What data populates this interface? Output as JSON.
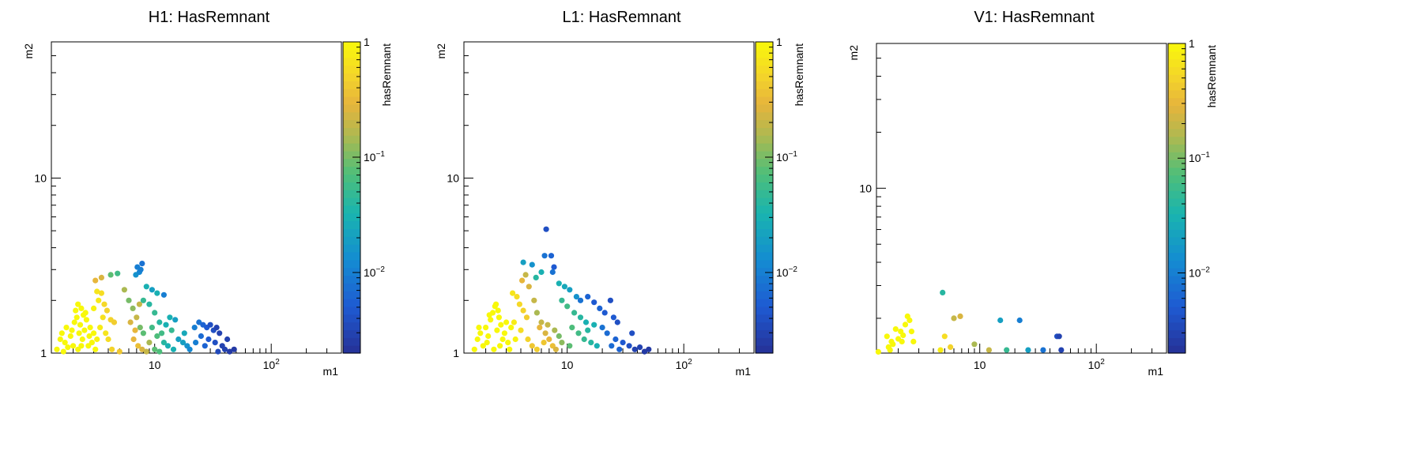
{
  "chart_data": [
    {
      "type": "scatter",
      "title": "H1: HasRemnant",
      "xlabel": "m1",
      "ylabel": "m2",
      "colorbar_label": "hasRemnant",
      "xscale": "log",
      "yscale": "log",
      "zscale": "log",
      "xlim": [
        1.3,
        400
      ],
      "ylim": [
        1,
        60
      ],
      "zlim": [
        0.002,
        1
      ],
      "xticks": [
        {
          "v": 10,
          "label": "10"
        },
        {
          "v": 100,
          "label": "10^2"
        }
      ],
      "yticks": [
        {
          "v": 1,
          "label": "1"
        },
        {
          "v": 10,
          "label": "10"
        }
      ],
      "cticks": [
        {
          "v": 1,
          "label": "1"
        },
        {
          "v": 0.1,
          "label": "10^-1"
        },
        {
          "v": 0.01,
          "label": "10^-2"
        }
      ],
      "grid": false,
      "points": [
        [
          1.45,
          1.05,
          1
        ],
        [
          1.55,
          1.2,
          1
        ],
        [
          1.6,
          1.3,
          1
        ],
        [
          1.7,
          1.15,
          1
        ],
        [
          1.75,
          1.4,
          1
        ],
        [
          1.8,
          1.08,
          1
        ],
        [
          1.9,
          1.25,
          1
        ],
        [
          1.95,
          1.35,
          1
        ],
        [
          2.0,
          1.1,
          1
        ],
        [
          2.05,
          1.5,
          1
        ],
        [
          2.1,
          1.75,
          1
        ],
        [
          2.15,
          1.6,
          1
        ],
        [
          2.2,
          1.9,
          1
        ],
        [
          2.25,
          1.3,
          1
        ],
        [
          2.3,
          1.45,
          1
        ],
        [
          2.35,
          1.8,
          1
        ],
        [
          2.4,
          1.2,
          1
        ],
        [
          2.45,
          1.65,
          1
        ],
        [
          2.5,
          1.35,
          1
        ],
        [
          2.6,
          1.55,
          1
        ],
        [
          2.7,
          1.1,
          1
        ],
        [
          2.75,
          1.25,
          1
        ],
        [
          2.8,
          1.4,
          1
        ],
        [
          2.9,
          1.15,
          1
        ],
        [
          3.0,
          1.3,
          1
        ],
        [
          3.1,
          1.05,
          1
        ],
        [
          2.2,
          1.05,
          1
        ],
        [
          1.65,
          1.02,
          1
        ],
        [
          2.55,
          1.7,
          1
        ],
        [
          2.35,
          1.1,
          1
        ],
        [
          3.2,
          2.25,
          0.7
        ],
        [
          3.5,
          2.2,
          0.6
        ],
        [
          3.3,
          2.0,
          0.75
        ],
        [
          3.7,
          1.9,
          0.55
        ],
        [
          3.9,
          1.75,
          0.5
        ],
        [
          3.6,
          1.6,
          0.65
        ],
        [
          4.2,
          1.55,
          0.5
        ],
        [
          4.5,
          1.5,
          0.45
        ],
        [
          3.4,
          1.4,
          0.8
        ],
        [
          3.8,
          1.3,
          0.7
        ],
        [
          4.0,
          1.2,
          0.6
        ],
        [
          4.3,
          1.05,
          0.5
        ],
        [
          5.0,
          1.02,
          0.4
        ],
        [
          3.1,
          2.6,
          0.3
        ],
        [
          3.5,
          2.7,
          0.25
        ],
        [
          3.2,
          1.2,
          0.9
        ],
        [
          3.0,
          1.8,
          0.9
        ],
        [
          4.2,
          2.8,
          0.08
        ],
        [
          4.8,
          2.85,
          0.06
        ],
        [
          5.5,
          2.3,
          0.15
        ],
        [
          6.0,
          2.0,
          0.1
        ],
        [
          6.5,
          1.8,
          0.12
        ],
        [
          7.0,
          1.6,
          0.2
        ],
        [
          6.2,
          1.5,
          0.25
        ],
        [
          7.5,
          1.4,
          0.1
        ],
        [
          8.0,
          1.3,
          0.08
        ],
        [
          6.6,
          1.2,
          0.3
        ],
        [
          7.2,
          1.1,
          0.35
        ],
        [
          7.8,
          1.05,
          0.25
        ],
        [
          8.5,
          1.02,
          0.2
        ],
        [
          9.0,
          1.15,
          0.15
        ],
        [
          6.8,
          1.35,
          0.3
        ],
        [
          7.4,
          1.9,
          0.2
        ],
        [
          6.9,
          2.8,
          0.015
        ],
        [
          7.4,
          2.9,
          0.012
        ],
        [
          7.1,
          3.1,
          0.01
        ],
        [
          7.8,
          3.25,
          0.008
        ],
        [
          7.6,
          3.0,
          0.01
        ],
        [
          8.5,
          2.4,
          0.03
        ],
        [
          9.5,
          2.3,
          0.02
        ],
        [
          10.5,
          2.2,
          0.03
        ],
        [
          12.0,
          2.15,
          0.01
        ],
        [
          8.0,
          2.0,
          0.05
        ],
        [
          9.0,
          1.9,
          0.04
        ],
        [
          10.0,
          1.7,
          0.05
        ],
        [
          11.0,
          1.5,
          0.04
        ],
        [
          12.5,
          1.45,
          0.03
        ],
        [
          13.5,
          1.6,
          0.03
        ],
        [
          15.0,
          1.55,
          0.02
        ],
        [
          14.0,
          1.35,
          0.05
        ],
        [
          11.5,
          1.3,
          0.06
        ],
        [
          10.5,
          1.25,
          0.07
        ],
        [
          12.0,
          1.15,
          0.04
        ],
        [
          13.0,
          1.1,
          0.03
        ],
        [
          14.5,
          1.05,
          0.03
        ],
        [
          16.0,
          1.2,
          0.02
        ],
        [
          17.5,
          1.15,
          0.02
        ],
        [
          19.0,
          1.1,
          0.015
        ],
        [
          10.0,
          1.05,
          0.08
        ],
        [
          11.0,
          1.02,
          0.07
        ],
        [
          9.5,
          1.4,
          0.06
        ],
        [
          18.0,
          1.3,
          0.025
        ],
        [
          22.0,
          1.4,
          0.01
        ],
        [
          24.0,
          1.5,
          0.008
        ],
        [
          26.0,
          1.45,
          0.006
        ],
        [
          28.0,
          1.4,
          0.005
        ],
        [
          30.0,
          1.45,
          0.004
        ],
        [
          32.0,
          1.35,
          0.004
        ],
        [
          34.0,
          1.4,
          0.003
        ],
        [
          36.0,
          1.3,
          0.003
        ],
        [
          25.0,
          1.25,
          0.007
        ],
        [
          29.0,
          1.2,
          0.005
        ],
        [
          33.0,
          1.15,
          0.004
        ],
        [
          38.0,
          1.1,
          0.003
        ],
        [
          40.0,
          1.05,
          0.003
        ],
        [
          44.0,
          1.02,
          0.0025
        ],
        [
          48.0,
          1.05,
          0.0025
        ],
        [
          20.0,
          1.05,
          0.012
        ],
        [
          22.5,
          1.15,
          0.01
        ],
        [
          27.0,
          1.1,
          0.006
        ],
        [
          35.0,
          1.02,
          0.0035
        ],
        [
          42.0,
          1.2,
          0.003
        ]
      ]
    },
    {
      "type": "scatter",
      "title": "L1: HasRemnant",
      "xlabel": "m1",
      "ylabel": "m2",
      "colorbar_label": "hasRemnant",
      "xscale": "log",
      "yscale": "log",
      "zscale": "log",
      "xlim": [
        1.3,
        400
      ],
      "ylim": [
        1,
        60
      ],
      "zlim": [
        0.002,
        1
      ],
      "xticks": [
        {
          "v": 10,
          "label": "10"
        },
        {
          "v": 100,
          "label": "10^2"
        }
      ],
      "yticks": [
        {
          "v": 1,
          "label": "1"
        },
        {
          "v": 10,
          "label": "10"
        }
      ],
      "cticks": [
        {
          "v": 1,
          "label": "1"
        },
        {
          "v": 0.1,
          "label": "10^-1"
        },
        {
          "v": 0.01,
          "label": "10^-2"
        }
      ],
      "grid": false,
      "points": [
        [
          1.6,
          1.05,
          1
        ],
        [
          1.7,
          1.2,
          1
        ],
        [
          1.8,
          1.3,
          1
        ],
        [
          1.9,
          1.1,
          1
        ],
        [
          2.0,
          1.4,
          1
        ],
        [
          2.1,
          1.25,
          1
        ],
        [
          2.2,
          1.55,
          1
        ],
        [
          2.3,
          1.7,
          1
        ],
        [
          2.4,
          1.85,
          1
        ],
        [
          2.5,
          1.35,
          1
        ],
        [
          2.6,
          1.6,
          1
        ],
        [
          2.7,
          1.45,
          1
        ],
        [
          2.8,
          1.2,
          1
        ],
        [
          2.9,
          1.3,
          1
        ],
        [
          3.0,
          1.5,
          1
        ],
        [
          3.1,
          1.15,
          1
        ],
        [
          3.2,
          1.05,
          1
        ],
        [
          2.45,
          1.9,
          1
        ],
        [
          2.55,
          1.75,
          1
        ],
        [
          2.35,
          1.05,
          1
        ],
        [
          2.05,
          1.15,
          1
        ],
        [
          1.75,
          1.4,
          1
        ],
        [
          3.3,
          1.4,
          1
        ],
        [
          2.65,
          1.1,
          1
        ],
        [
          2.15,
          1.65,
          1
        ],
        [
          3.4,
          2.2,
          0.7
        ],
        [
          3.7,
          2.1,
          0.6
        ],
        [
          3.9,
          1.9,
          0.55
        ],
        [
          4.2,
          1.75,
          0.5
        ],
        [
          4.5,
          1.6,
          0.45
        ],
        [
          3.5,
          1.5,
          0.8
        ],
        [
          4.0,
          1.35,
          0.6
        ],
        [
          4.6,
          1.2,
          0.5
        ],
        [
          5.0,
          1.1,
          0.4
        ],
        [
          3.6,
          1.2,
          0.9
        ],
        [
          4.1,
          2.6,
          0.3
        ],
        [
          4.4,
          2.8,
          0.2
        ],
        [
          4.7,
          2.4,
          0.25
        ],
        [
          5.2,
          2.0,
          0.2
        ],
        [
          5.5,
          1.7,
          0.15
        ],
        [
          6.0,
          1.5,
          0.2
        ],
        [
          6.5,
          1.3,
          0.25
        ],
        [
          7.0,
          1.2,
          0.3
        ],
        [
          7.5,
          1.1,
          0.35
        ],
        [
          8.0,
          1.05,
          0.25
        ],
        [
          5.8,
          1.4,
          0.3
        ],
        [
          6.8,
          1.45,
          0.2
        ],
        [
          7.8,
          1.35,
          0.15
        ],
        [
          8.5,
          1.25,
          0.1
        ],
        [
          9.0,
          1.15,
          0.12
        ],
        [
          6.3,
          1.15,
          0.4
        ],
        [
          5.5,
          1.05,
          0.45
        ],
        [
          4.2,
          3.3,
          0.02
        ],
        [
          5.0,
          3.2,
          0.015
        ],
        [
          6.4,
          3.6,
          0.008
        ],
        [
          6.6,
          5.1,
          0.004
        ],
        [
          7.3,
          3.6,
          0.006
        ],
        [
          7.7,
          3.1,
          0.005
        ],
        [
          7.5,
          2.9,
          0.008
        ],
        [
          6.0,
          2.9,
          0.03
        ],
        [
          5.4,
          2.7,
          0.04
        ],
        [
          8.5,
          2.5,
          0.03
        ],
        [
          9.5,
          2.4,
          0.025
        ],
        [
          10.5,
          2.3,
          0.02
        ],
        [
          12.0,
          2.1,
          0.015
        ],
        [
          9.0,
          2.0,
          0.05
        ],
        [
          10.0,
          1.85,
          0.06
        ],
        [
          11.5,
          1.7,
          0.05
        ],
        [
          13.0,
          1.6,
          0.04
        ],
        [
          14.5,
          1.5,
          0.03
        ],
        [
          11.0,
          1.4,
          0.07
        ],
        [
          12.5,
          1.3,
          0.06
        ],
        [
          14.0,
          1.2,
          0.05
        ],
        [
          16.0,
          1.15,
          0.04
        ],
        [
          18.0,
          1.1,
          0.03
        ],
        [
          15.0,
          1.35,
          0.04
        ],
        [
          17.0,
          1.45,
          0.03
        ],
        [
          10.5,
          1.1,
          0.08
        ],
        [
          13.0,
          2.0,
          0.008
        ],
        [
          15.0,
          2.1,
          0.006
        ],
        [
          17.0,
          1.95,
          0.005
        ],
        [
          19.0,
          1.8,
          0.006
        ],
        [
          21.0,
          1.7,
          0.005
        ],
        [
          23.5,
          2.0,
          0.004
        ],
        [
          25.0,
          1.6,
          0.005
        ],
        [
          27.0,
          1.5,
          0.004
        ],
        [
          20.0,
          1.4,
          0.008
        ],
        [
          22.0,
          1.3,
          0.007
        ],
        [
          26.0,
          1.2,
          0.006
        ],
        [
          30.0,
          1.15,
          0.005
        ],
        [
          34.0,
          1.1,
          0.004
        ],
        [
          38.0,
          1.05,
          0.003
        ],
        [
          42.0,
          1.08,
          0.003
        ],
        [
          46.0,
          1.02,
          0.0025
        ],
        [
          50.0,
          1.05,
          0.0025
        ],
        [
          24.0,
          1.1,
          0.007
        ],
        [
          28.0,
          1.05,
          0.006
        ],
        [
          36.0,
          1.3,
          0.004
        ]
      ]
    },
    {
      "type": "scatter",
      "title": "V1: HasRemnant",
      "xlabel": "m1",
      "ylabel": "m2",
      "colorbar_label": "hasRemnant",
      "xscale": "log",
      "yscale": "log",
      "zscale": "log",
      "xlim": [
        1.3,
        400
      ],
      "ylim": [
        1.3,
        60
      ],
      "zlim": [
        0.002,
        1
      ],
      "xticks": [
        {
          "v": 10,
          "label": "10"
        },
        {
          "v": 100,
          "label": "10^2"
        }
      ],
      "yticks": [
        {
          "v": 10,
          "label": "10"
        }
      ],
      "cticks": [
        {
          "v": 1,
          "label": "1"
        },
        {
          "v": 0.1,
          "label": "10^-1"
        },
        {
          "v": 0.01,
          "label": "10^-2"
        }
      ],
      "grid": false,
      "points": [
        [
          1.35,
          1.32,
          1
        ],
        [
          1.6,
          1.6,
          1
        ],
        [
          1.65,
          1.4,
          1
        ],
        [
          1.75,
          1.5,
          1
        ],
        [
          1.8,
          1.45,
          1
        ],
        [
          1.9,
          1.75,
          1
        ],
        [
          2.0,
          1.55,
          1
        ],
        [
          2.1,
          1.7,
          1
        ],
        [
          2.15,
          1.5,
          1
        ],
        [
          2.2,
          1.62,
          1
        ],
        [
          2.3,
          1.85,
          1
        ],
        [
          2.4,
          2.05,
          1
        ],
        [
          2.5,
          1.95,
          1
        ],
        [
          2.6,
          1.7,
          1
        ],
        [
          2.7,
          1.5,
          1
        ],
        [
          1.7,
          1.35,
          1
        ],
        [
          4.6,
          1.35,
          0.8
        ],
        [
          5.0,
          1.6,
          0.6
        ],
        [
          5.6,
          1.4,
          0.5
        ],
        [
          4.8,
          2.75,
          0.04
        ],
        [
          6.0,
          2.0,
          0.2
        ],
        [
          6.8,
          2.05,
          0.25
        ],
        [
          9.0,
          1.45,
          0.15
        ],
        [
          12.0,
          1.35,
          0.2
        ],
        [
          15.0,
          1.95,
          0.02
        ],
        [
          17.0,
          1.35,
          0.05
        ],
        [
          22.0,
          1.95,
          0.01
        ],
        [
          26.0,
          1.35,
          0.02
        ],
        [
          35.0,
          1.35,
          0.008
        ],
        [
          46.0,
          1.6,
          0.004
        ],
        [
          50.0,
          1.35,
          0.003
        ],
        [
          48.0,
          1.6,
          0.003
        ]
      ]
    }
  ]
}
